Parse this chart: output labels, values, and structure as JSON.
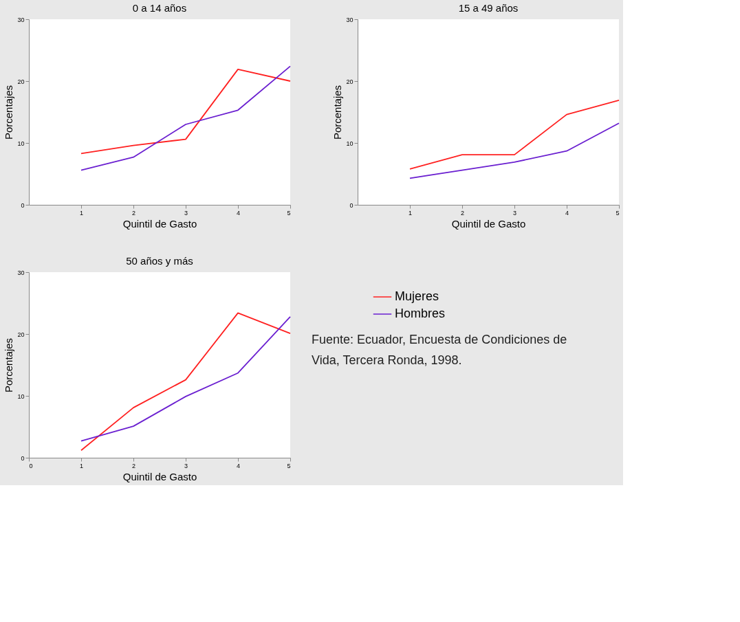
{
  "chart_data": [
    {
      "type": "line",
      "title": "0 a 14 años",
      "xlabel": "Quintil de Gasto",
      "ylabel": "Porcentajes",
      "x": [
        1,
        2,
        3,
        4,
        5
      ],
      "xlim": [
        0,
        5
      ],
      "xticks": [
        1,
        2,
        3,
        4,
        5
      ],
      "ylim": [
        0,
        30
      ],
      "yticks": [
        0,
        10,
        20,
        30
      ],
      "grid": false,
      "legend": "right",
      "series": [
        {
          "name": "Mujeres",
          "color": "#ff2020",
          "values": [
            8.3,
            9.6,
            10.6,
            21.9,
            20.0
          ]
        },
        {
          "name": "Hombres",
          "color": "#6a1fd0",
          "values": [
            5.6,
            7.7,
            13.0,
            15.3,
            22.4
          ]
        }
      ]
    },
    {
      "type": "line",
      "title": "15 a 49 años",
      "xlabel": "Quintil de Gasto",
      "ylabel": "Porcentajes",
      "x": [
        1,
        2,
        3,
        4,
        5
      ],
      "xlim": [
        0,
        5
      ],
      "xticks": [
        1,
        2,
        3,
        4,
        5
      ],
      "ylim": [
        0,
        30
      ],
      "yticks": [
        0,
        10,
        20,
        30
      ],
      "grid": false,
      "legend": "right",
      "series": [
        {
          "name": "Mujeres",
          "color": "#ff2020",
          "values": [
            5.8,
            8.1,
            8.1,
            14.6,
            16.9
          ]
        },
        {
          "name": "Hombres",
          "color": "#6a1fd0",
          "values": [
            4.3,
            5.6,
            6.9,
            8.7,
            13.2
          ]
        }
      ]
    },
    {
      "type": "line",
      "title": "50 años y más",
      "xlabel": "Quintil de Gasto",
      "ylabel": "Porcentajes",
      "x": [
        1,
        2,
        3,
        4,
        5
      ],
      "xlim": [
        0,
        5
      ],
      "xticks": [
        0,
        1,
        2,
        3,
        4,
        5
      ],
      "ylim": [
        0,
        30
      ],
      "yticks": [
        0,
        10,
        20,
        30
      ],
      "grid": false,
      "legend": "right",
      "annotations": [
        "Fuente: Ecuador, Encuesta de Condiciones de Vida, Tercera Ronda, 1998."
      ],
      "series": [
        {
          "name": "Mujeres",
          "color": "#ff2020",
          "values": [
            1.2,
            8.1,
            12.6,
            23.4,
            20.1
          ]
        },
        {
          "name": "Hombres",
          "color": "#6a1fd0",
          "values": [
            2.7,
            5.1,
            9.9,
            13.7,
            22.8
          ]
        }
      ]
    }
  ]
}
